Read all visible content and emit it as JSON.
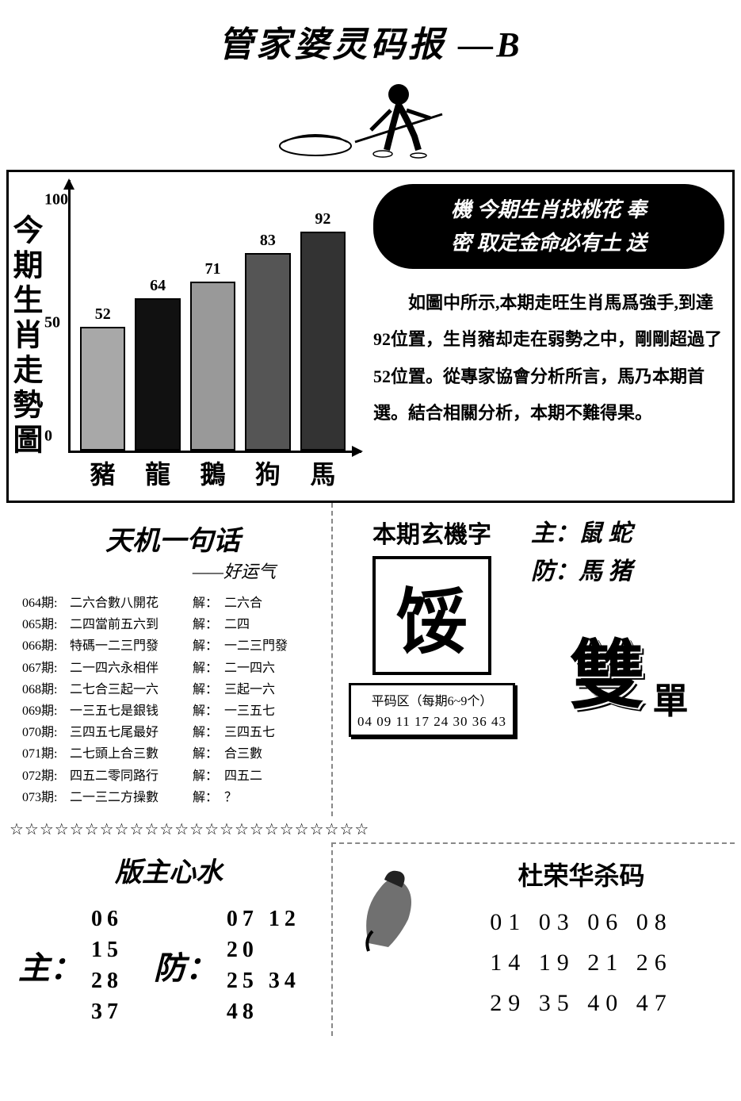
{
  "header": {
    "title": "管家婆灵码报 —B"
  },
  "chart": {
    "vtitle": "今期生肖走勢圖",
    "type": "bar",
    "ylim": [
      0,
      100
    ],
    "yticks": [
      0,
      50,
      100
    ],
    "categories": [
      "豬",
      "龍",
      "鵝",
      "狗",
      "馬"
    ],
    "values": [
      52,
      64,
      71,
      83,
      92
    ],
    "bar_colors": [
      "#a8a8a8",
      "#111111",
      "#999999",
      "#555555",
      "#333333"
    ],
    "label_fontsize": 20,
    "value_fontsize": 20,
    "category_fontsize": 32,
    "background_color": "#ffffff",
    "border_color": "#000000"
  },
  "poem": {
    "line1": "機 今期生肖找桃花 奉",
    "line2": "密 取定金命必有土 送"
  },
  "analysis": "如圖中所示,本期走旺生肖馬爲強手,到達92位置，生肖豬却走在弱勢之中，剛剛超過了52位置。從專家協會分析所言，馬乃本期首選。結合相關分析，本期不難得果。",
  "tianji": {
    "title": "天机一句话",
    "subtitle": "——好运气",
    "rows": [
      {
        "issue": "064期:",
        "text": "二六合數八開花",
        "jie": "解：",
        "ans": "二六合"
      },
      {
        "issue": "065期:",
        "text": "二四當前五六到",
        "jie": "解：",
        "ans": "二四"
      },
      {
        "issue": "066期:",
        "text": "特碼一二三門發",
        "jie": "解：",
        "ans": "一二三門發"
      },
      {
        "issue": "067期:",
        "text": "二一四六永相伴",
        "jie": "解：",
        "ans": "二一四六"
      },
      {
        "issue": "068期:",
        "text": "二七合三起一六",
        "jie": "解：",
        "ans": "三起一六"
      },
      {
        "issue": "069期:",
        "text": "一三五七是銀钱",
        "jie": "解：",
        "ans": "一三五七"
      },
      {
        "issue": "070期:",
        "text": "三四五七尾最好",
        "jie": "解：",
        "ans": "三四五七"
      },
      {
        "issue": "071期:",
        "text": "二七頭上合三數",
        "jie": "解：",
        "ans": "合三數"
      },
      {
        "issue": "072期:",
        "text": "四五二零同路行",
        "jie": "解：",
        "ans": "四五二"
      },
      {
        "issue": "073期:",
        "text": "二一三二方操數",
        "jie": "解：",
        "ans": "？"
      }
    ]
  },
  "xuanji": {
    "title": "本期玄機字",
    "char": "馁",
    "pingma_title": "平码区（每期6~9个）",
    "pingma_nums": "04 09 11 17 24 30 36 43"
  },
  "zhufang": {
    "zhu_label": "主：",
    "zhu_vals": "鼠 蛇",
    "fang_label": "防：",
    "fang_vals": "馬 猪",
    "big": "雙",
    "small": "單"
  },
  "stars": "☆☆☆☆☆☆☆☆☆☆☆☆☆☆☆☆☆☆☆☆☆☆☆☆",
  "banzu": {
    "title": "版主心水",
    "zhu_label": "主：",
    "zhu_line1": "06 15",
    "zhu_line2": "28 37",
    "fang_label": "防：",
    "fang_line1": "07 12 20",
    "fang_line2": "25 34 48"
  },
  "kill": {
    "title": "杜荣华杀码",
    "line1": "01 03 06 08",
    "line2": "14 19 21 26",
    "line3": "29 35 40 47"
  }
}
